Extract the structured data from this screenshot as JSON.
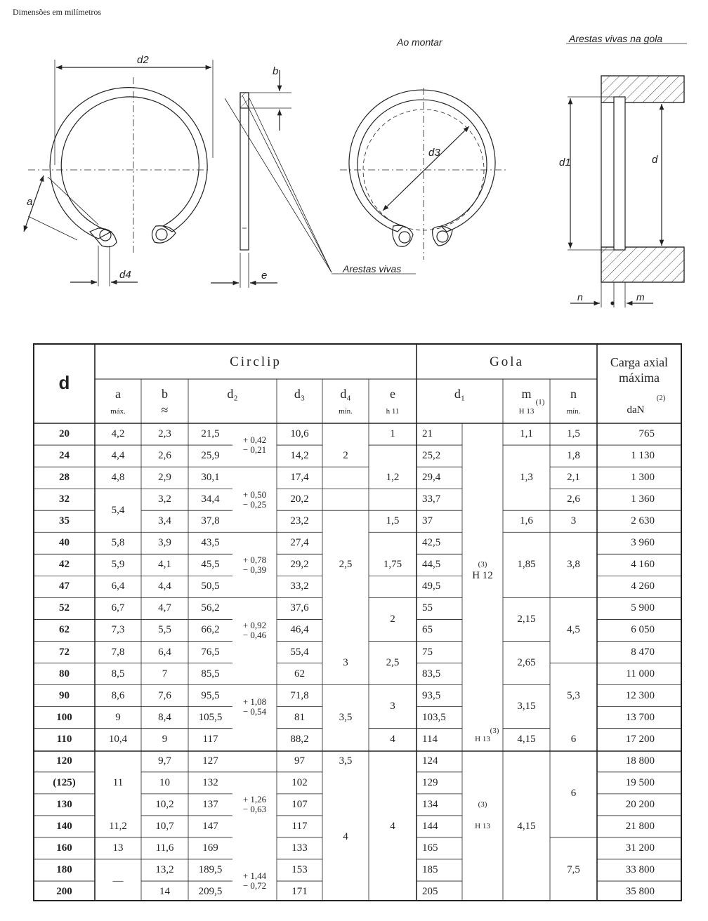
{
  "header": "Dimensões em milímetros",
  "drawing": {
    "labels": {
      "d2": "d2",
      "a": "a",
      "d4": "d4",
      "b": "b",
      "e": "e",
      "d3": "d3",
      "d1": "d1",
      "d": "d",
      "n": "n",
      "m": "m",
      "ao_montar": "Ao montar",
      "arestas_vivas": "Arestas vivas",
      "arestas_vivas_gola": "Arestas vivas na gola"
    }
  },
  "table": {
    "d_header": "d",
    "circlip_title": "Circlip",
    "gola_title": "Gola",
    "carga_title_1": "Carga axial",
    "carga_title_2": "máxima",
    "col_headers": {
      "a": "a",
      "a_sub": "máx.",
      "b": "b",
      "b_sub": "≈",
      "d2": "d₂",
      "d3": "d₃",
      "d4": "d₄",
      "d4_sub": "mín.",
      "e": "e",
      "e_sub": "h 11",
      "d1": "d₁",
      "m": "m",
      "m_sub": "H 13",
      "m_note": "(1)",
      "n": "n",
      "n_sub": "mín.",
      "carga_unit": "daN",
      "carga_note": "(2)"
    },
    "rows": [
      {
        "d": "20",
        "a": "4,2",
        "b": "2,3",
        "d2": "21,5",
        "d3": "10,6",
        "d1": "21",
        "n": "1,5",
        "carga": "765"
      },
      {
        "d": "24",
        "a": "4,4",
        "b": "2,6",
        "d2": "25,9",
        "d3": "14,2",
        "d1": "25,2",
        "n": "1,8",
        "carga": "1 130"
      },
      {
        "d": "28",
        "a": "4,8",
        "b": "2,9",
        "d2": "30,1",
        "d3": "17,4",
        "d1": "29,4",
        "n": "2,1",
        "carga": "1 300"
      },
      {
        "d": "32",
        "a": "",
        "b": "3,2",
        "d2": "34,4",
        "d3": "20,2",
        "d1": "33,7",
        "n": "2,6",
        "carga": "1 360"
      },
      {
        "d": "35",
        "a": "",
        "b": "3,4",
        "d2": "37,8",
        "d3": "23,2",
        "d1": "37",
        "n": "3",
        "carga": "2 630"
      },
      {
        "d": "40",
        "a": "5,8",
        "b": "3,9",
        "d2": "43,5",
        "d3": "27,4",
        "d1": "42,5",
        "n": "",
        "carga": "3 960"
      },
      {
        "d": "42",
        "a": "5,9",
        "b": "4,1",
        "d2": "45,5",
        "d3": "29,2",
        "d1": "44,5",
        "n": "",
        "carga": "4 160"
      },
      {
        "d": "47",
        "a": "6,4",
        "b": "4,4",
        "d2": "50,5",
        "d3": "33,2",
        "d1": "49,5",
        "n": "",
        "carga": "4 260"
      },
      {
        "d": "52",
        "a": "6,7",
        "b": "4,7",
        "d2": "56,2",
        "d3": "37,6",
        "d1": "55",
        "n": "",
        "carga": "5 900"
      },
      {
        "d": "62",
        "a": "7,3",
        "b": "5,5",
        "d2": "66,2",
        "d3": "46,4",
        "d1": "65",
        "n": "",
        "carga": "6 050"
      },
      {
        "d": "72",
        "a": "7,8",
        "b": "6,4",
        "d2": "76,5",
        "d3": "55,4",
        "d1": "75",
        "n": "",
        "carga": "8 470"
      },
      {
        "d": "80",
        "a": "8,5",
        "b": "7",
        "d2": "85,5",
        "d3": "62",
        "d1": "83,5",
        "n": "",
        "carga": "11 000"
      },
      {
        "d": "90",
        "a": "8,6",
        "b": "7,6",
        "d2": "95,5",
        "d3": "71,8",
        "d1": "93,5",
        "n": "",
        "carga": "12 300"
      },
      {
        "d": "100",
        "a": "9",
        "b": "8,4",
        "d2": "105,5",
        "d3": "81",
        "d1": "103,5",
        "n": "",
        "carga": "13 700"
      },
      {
        "d": "110",
        "a": "10,4",
        "b": "9",
        "d2": "117",
        "d3": "88,2",
        "d1": "114",
        "n": "6",
        "carga": "17 200"
      },
      {
        "d": "120",
        "a": "",
        "b": "9,7",
        "d2": "127",
        "d3": "97",
        "d1": "124",
        "n": "",
        "carga": "18 800"
      },
      {
        "d": "(125)",
        "a": "",
        "b": "10",
        "d2": "132",
        "d3": "102",
        "d1": "129",
        "n": "",
        "carga": "19 500"
      },
      {
        "d": "130",
        "a": "",
        "b": "10,2",
        "d2": "137",
        "d3": "107",
        "d1": "134",
        "n": "",
        "carga": "20 200"
      },
      {
        "d": "140",
        "a": "11,2",
        "b": "10,7",
        "d2": "147",
        "d3": "117",
        "d1": "144",
        "n": "",
        "carga": "21 800"
      },
      {
        "d": "160",
        "a": "13",
        "b": "11,6",
        "d2": "169",
        "d3": "133",
        "d1": "165",
        "n": "",
        "carga": "31 200"
      },
      {
        "d": "180",
        "a": "",
        "b": "13,2",
        "d2": "189,5",
        "d3": "153",
        "d1": "185",
        "n": "",
        "carga": "33 800"
      },
      {
        "d": "200",
        "a": "",
        "b": "14",
        "d2": "209,5",
        "d3": "171",
        "d1": "205",
        "n": "",
        "carga": "35 800"
      }
    ],
    "merged": {
      "a_32_35": "5,4",
      "a_120_130": "11",
      "a_180_200": "—",
      "d2_tol_1": [
        "+ 0,42",
        "− 0,21"
      ],
      "d2_tol_2": [
        "+ 0,50",
        "− 0,25"
      ],
      "d2_tol_3": [
        "+ 0,78",
        "− 0,39"
      ],
      "d2_tol_4": [
        "+ 0,92",
        "− 0,46"
      ],
      "d2_tol_5": [
        "+ 1,08",
        "− 0,54"
      ],
      "d2_tol_6": [
        "+ 1,26",
        "− 0,63"
      ],
      "d2_tol_7": [
        "+ 1,44",
        "− 0,72"
      ],
      "d4_20_24": "2",
      "d4_40_47": "2,5",
      "d4_72_80": "3",
      "d4_90_100": "3,5",
      "d4_120": "3,5",
      "d4_130_200": "4",
      "e_20": "1",
      "e_24_28": "1,2",
      "e_35": "1,5",
      "e_40_42": "1,75",
      "e_52_62": "2",
      "e_72_80": "2,5",
      "e_90_100": "3",
      "e_110": "4",
      "e_120_200": "4",
      "d1tol_h12": "H 12",
      "d1tol_h12_note": "(3)",
      "d1tol_110": "H 13",
      "d1tol_110_note": "(3)",
      "d1tol_h13": "H 13",
      "d1tol_h13_note": "(3)",
      "m_20": "1,1",
      "m_24_32": "1,3",
      "m_35": "1,6",
      "m_40_47": "1,85",
      "m_52_62": "2,15",
      "m_72_80": "2,65",
      "m_90_100": "3,15",
      "m_110": "4,15",
      "m_120_200": "4,15",
      "n_40_47": "3,8",
      "n_52_72": "4,5",
      "n_80_100": "5,3",
      "n_120_130": "6",
      "n_160_200": "7,5"
    }
  }
}
